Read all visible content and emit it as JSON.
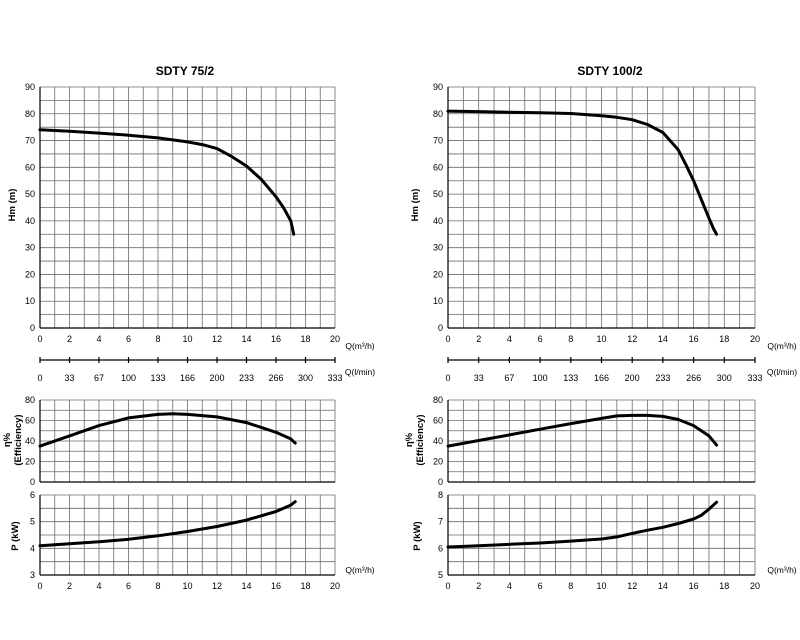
{
  "chart_data": [
    {
      "title": "SDTY 75/2",
      "units": {
        "q_m3h": "Q(m³/h)",
        "q_lmin": "Q(l/min)"
      },
      "lmin_ticks": [
        "0",
        "33",
        "67",
        "100",
        "133",
        "166",
        "200",
        "233",
        "266",
        "300",
        "333"
      ],
      "panels": [
        {
          "id": "head",
          "type": "line",
          "ylabel": "Hm (m)",
          "xlim": [
            0,
            20
          ],
          "ylim": [
            0,
            90
          ],
          "xticks": [
            0,
            2,
            4,
            6,
            8,
            10,
            12,
            14,
            16,
            18,
            20
          ],
          "yticks": [
            0,
            10,
            20,
            30,
            40,
            50,
            60,
            70,
            80,
            90
          ],
          "series": [
            {
              "x": [
                0,
                2,
                4,
                6,
                8,
                10,
                11,
                12,
                13,
                14,
                15,
                16,
                16.5,
                17,
                17.2
              ],
              "y": [
                74,
                73.5,
                72.8,
                72,
                71,
                69.5,
                68.5,
                67,
                64,
                60.5,
                55.5,
                49,
                45,
                40,
                35
              ]
            }
          ]
        },
        {
          "id": "eff",
          "type": "line",
          "ylabel": [
            "η%",
            "(Efficiency)"
          ],
          "xlim": [
            0,
            20
          ],
          "ylim": [
            0,
            80
          ],
          "xticks": [],
          "yticks": [
            0,
            20,
            40,
            60,
            80
          ],
          "series": [
            {
              "x": [
                0,
                2,
                4,
                6,
                8,
                9,
                10,
                12,
                14,
                16,
                17,
                17.3
              ],
              "y": [
                35,
                45,
                55,
                62.5,
                66,
                66.5,
                66,
                63.5,
                58,
                48.5,
                42,
                38
              ]
            }
          ]
        },
        {
          "id": "power",
          "type": "line",
          "ylabel": "P  (kW)",
          "xlim": [
            0,
            20
          ],
          "ylim": [
            3,
            6
          ],
          "xticks": [
            0,
            2,
            4,
            6,
            8,
            10,
            12,
            14,
            16,
            18,
            20
          ],
          "yticks": [
            3,
            4,
            5,
            6
          ],
          "series": [
            {
              "x": [
                0,
                2,
                4,
                6,
                8,
                10,
                12,
                14,
                16,
                17,
                17.3
              ],
              "y": [
                4.1,
                4.17,
                4.25,
                4.34,
                4.47,
                4.63,
                4.82,
                5.06,
                5.38,
                5.62,
                5.75
              ]
            }
          ]
        }
      ]
    },
    {
      "title": "SDTY 100/2",
      "units": {
        "q_m3h": "Q(m³/h)",
        "q_lmin": "Q(l/min)"
      },
      "lmin_ticks": [
        "0",
        "33",
        "67",
        "100",
        "133",
        "166",
        "200",
        "233",
        "266",
        "300",
        "333"
      ],
      "panels": [
        {
          "id": "head",
          "type": "line",
          "ylabel": "Hm (m)",
          "xlim": [
            0,
            20
          ],
          "ylim": [
            0,
            90
          ],
          "xticks": [
            0,
            2,
            4,
            6,
            8,
            10,
            12,
            14,
            16,
            18,
            20
          ],
          "yticks": [
            0,
            10,
            20,
            30,
            40,
            50,
            60,
            70,
            80,
            90
          ],
          "series": [
            {
              "x": [
                0,
                2,
                4,
                6,
                8,
                10,
                11,
                12,
                13,
                14,
                15,
                15.5,
                16,
                16.5,
                17,
                17.3,
                17.5
              ],
              "y": [
                81,
                80.8,
                80.6,
                80.4,
                80.1,
                79.3,
                78.7,
                77.8,
                76,
                73,
                66.5,
                61,
                55,
                48,
                41,
                37,
                35
              ]
            }
          ]
        },
        {
          "id": "eff",
          "type": "line",
          "ylabel": [
            "η%",
            "(Efficiency)"
          ],
          "xlim": [
            0,
            20
          ],
          "ylim": [
            0,
            80
          ],
          "xticks": [],
          "yticks": [
            0,
            20,
            40,
            60,
            80
          ],
          "series": [
            {
              "x": [
                0,
                2,
                4,
                6,
                8,
                10,
                11,
                12,
                13,
                14,
                15,
                16,
                17,
                17.5
              ],
              "y": [
                35,
                40.5,
                46,
                51.5,
                57,
                62,
                64.5,
                65,
                65,
                64,
                61,
                55,
                45,
                36
              ]
            }
          ]
        },
        {
          "id": "power",
          "type": "line",
          "ylabel": "P  (kW)",
          "xlim": [
            0,
            20
          ],
          "ylim": [
            5,
            8
          ],
          "xticks": [
            0,
            2,
            4,
            6,
            8,
            10,
            12,
            14,
            16,
            18,
            20
          ],
          "yticks": [
            5,
            6,
            7,
            8
          ],
          "series": [
            {
              "x": [
                0,
                2,
                4,
                6,
                8,
                10,
                11,
                12,
                13,
                14,
                15,
                16,
                16.5,
                17,
                17.5
              ],
              "y": [
                6.05,
                6.1,
                6.15,
                6.2,
                6.27,
                6.35,
                6.43,
                6.56,
                6.68,
                6.79,
                6.93,
                7.1,
                7.24,
                7.47,
                7.73
              ]
            }
          ]
        }
      ]
    }
  ]
}
